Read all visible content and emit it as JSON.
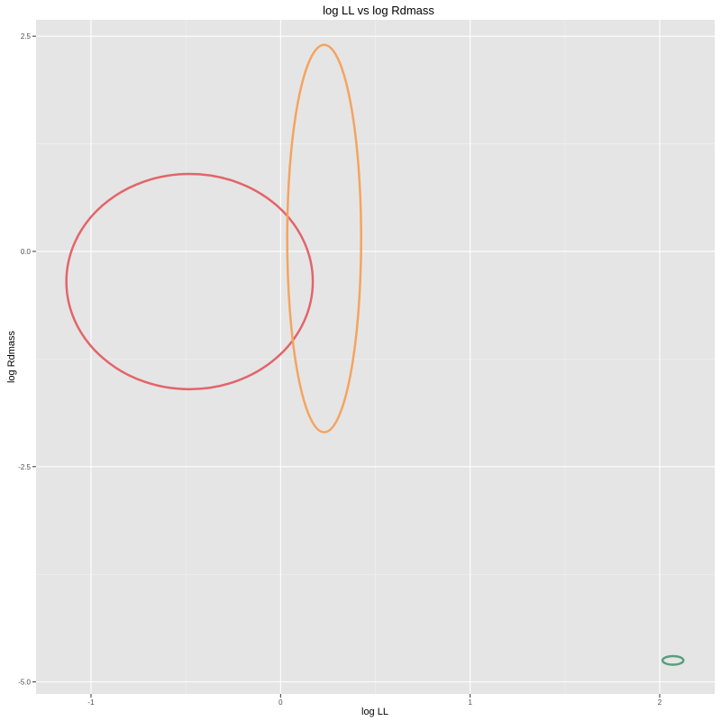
{
  "chart_data": {
    "type": "scatter",
    "title": "log LL vs log Rdmass",
    "xlabel": "log LL",
    "ylabel": "log Rdmass",
    "xlim": [
      -1.29,
      2.29
    ],
    "ylim": [
      -5.14,
      2.69
    ],
    "x_ticks": [
      -1,
      0,
      1,
      2
    ],
    "x_tick_labels": [
      "-1",
      "0",
      "1",
      "2"
    ],
    "y_ticks": [
      2.5,
      0,
      -2.5,
      -5
    ],
    "y_tick_labels": [
      "2.5",
      "0.0",
      "-2.5",
      "-5.0"
    ],
    "grid": true,
    "legend": "none",
    "background": "#e5e5e5",
    "series": [
      {
        "color": "#e3646a",
        "center": [
          -0.48,
          -0.35
        ],
        "half_width": 0.65,
        "half_height": 1.25
      },
      {
        "color": "#f4a460",
        "center": [
          0.23,
          0.15
        ],
        "half_width": 0.195,
        "half_height": 2.25
      },
      {
        "color": "#5a9e7d",
        "center": [
          2.07,
          -4.75
        ],
        "half_width": 0.055,
        "half_height": 0.05
      }
    ]
  }
}
